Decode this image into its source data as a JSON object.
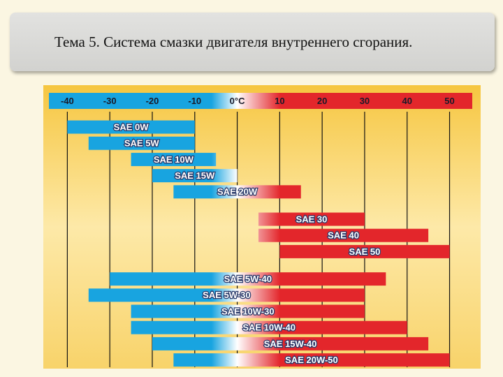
{
  "title": "Тема 5. Система смазки двигателя внутреннего сгорания.",
  "chart_data": {
    "type": "range-bar",
    "categories": [
      "SAE 0W",
      "SAE 5W",
      "SAE 10W",
      "SAE 15W",
      "SAE 20W",
      "SAE 30",
      "SAE 40",
      "SAE 50",
      "SAE 5W-40",
      "SAE 5W-30",
      "SAE 10W-30",
      "SAE 10W-40",
      "SAE 15W-40",
      "SAE 20W-50"
    ],
    "low": [
      -40,
      -35,
      -25,
      -20,
      -15,
      5,
      5,
      10,
      -30,
      -35,
      -25,
      -25,
      -20,
      -15
    ],
    "high": [
      -10,
      -10,
      -5,
      0,
      15,
      30,
      45,
      50,
      35,
      30,
      30,
      40,
      45,
      50
    ],
    "xlim": [
      -45,
      56
    ],
    "xticks": [
      -40,
      -30,
      -20,
      -10,
      {
        "value": 0,
        "label": "0°C"
      },
      10,
      20,
      30,
      40,
      50
    ],
    "colors": [
      "#18a4e0",
      "#ffffff",
      "#e3262b"
    ],
    "grid": true
  }
}
